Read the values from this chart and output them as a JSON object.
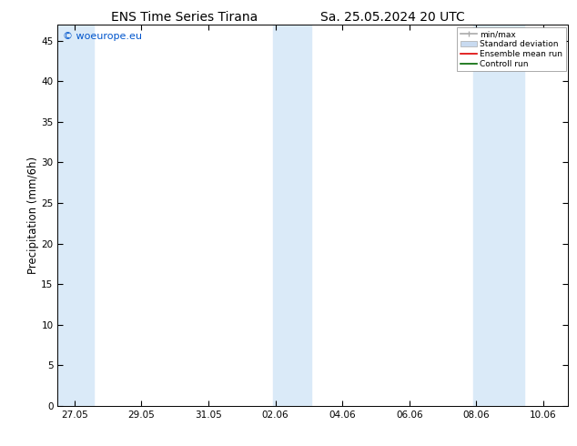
{
  "title_left": "ENS Time Series Tirana",
  "title_right": "Sa. 25.05.2024 20 UTC",
  "ylabel": "Precipitation (mm/6h)",
  "ylim": [
    0,
    47
  ],
  "yticks": [
    0,
    5,
    10,
    15,
    20,
    25,
    30,
    35,
    40,
    45
  ],
  "background_color": "#ffffff",
  "plot_bg_color": "#ffffff",
  "watermark": "© woeurope.eu",
  "watermark_color": "#0055cc",
  "shaded_bands": [
    {
      "x_start": 25.5,
      "x_end": 26.58,
      "color": "#daeaf8"
    },
    {
      "x_start": 31.92,
      "x_end": 33.08,
      "color": "#daeaf8"
    },
    {
      "x_start": 37.92,
      "x_end": 39.42,
      "color": "#daeaf8"
    }
  ],
  "xtick_labels": [
    "27.05",
    "29.05",
    "31.05",
    "02.06",
    "04.06",
    "06.06",
    "08.06",
    "10.06"
  ],
  "xtick_positions": [
    26.0,
    28.0,
    30.0,
    32.0,
    34.0,
    36.0,
    38.0,
    40.0
  ],
  "xlim": [
    25.5,
    40.75
  ],
  "legend_items": [
    {
      "label": "min/max",
      "color": "#aaaaaa",
      "lw": 1.2
    },
    {
      "label": "Standard deviation",
      "color": "#c8daf0"
    },
    {
      "label": "Ensemble mean run",
      "color": "#dd0000",
      "lw": 1.2
    },
    {
      "label": "Controll run",
      "color": "#006600",
      "lw": 1.2
    }
  ],
  "title_fontsize": 10,
  "tick_labelsize": 7.5,
  "ylabel_fontsize": 8.5
}
